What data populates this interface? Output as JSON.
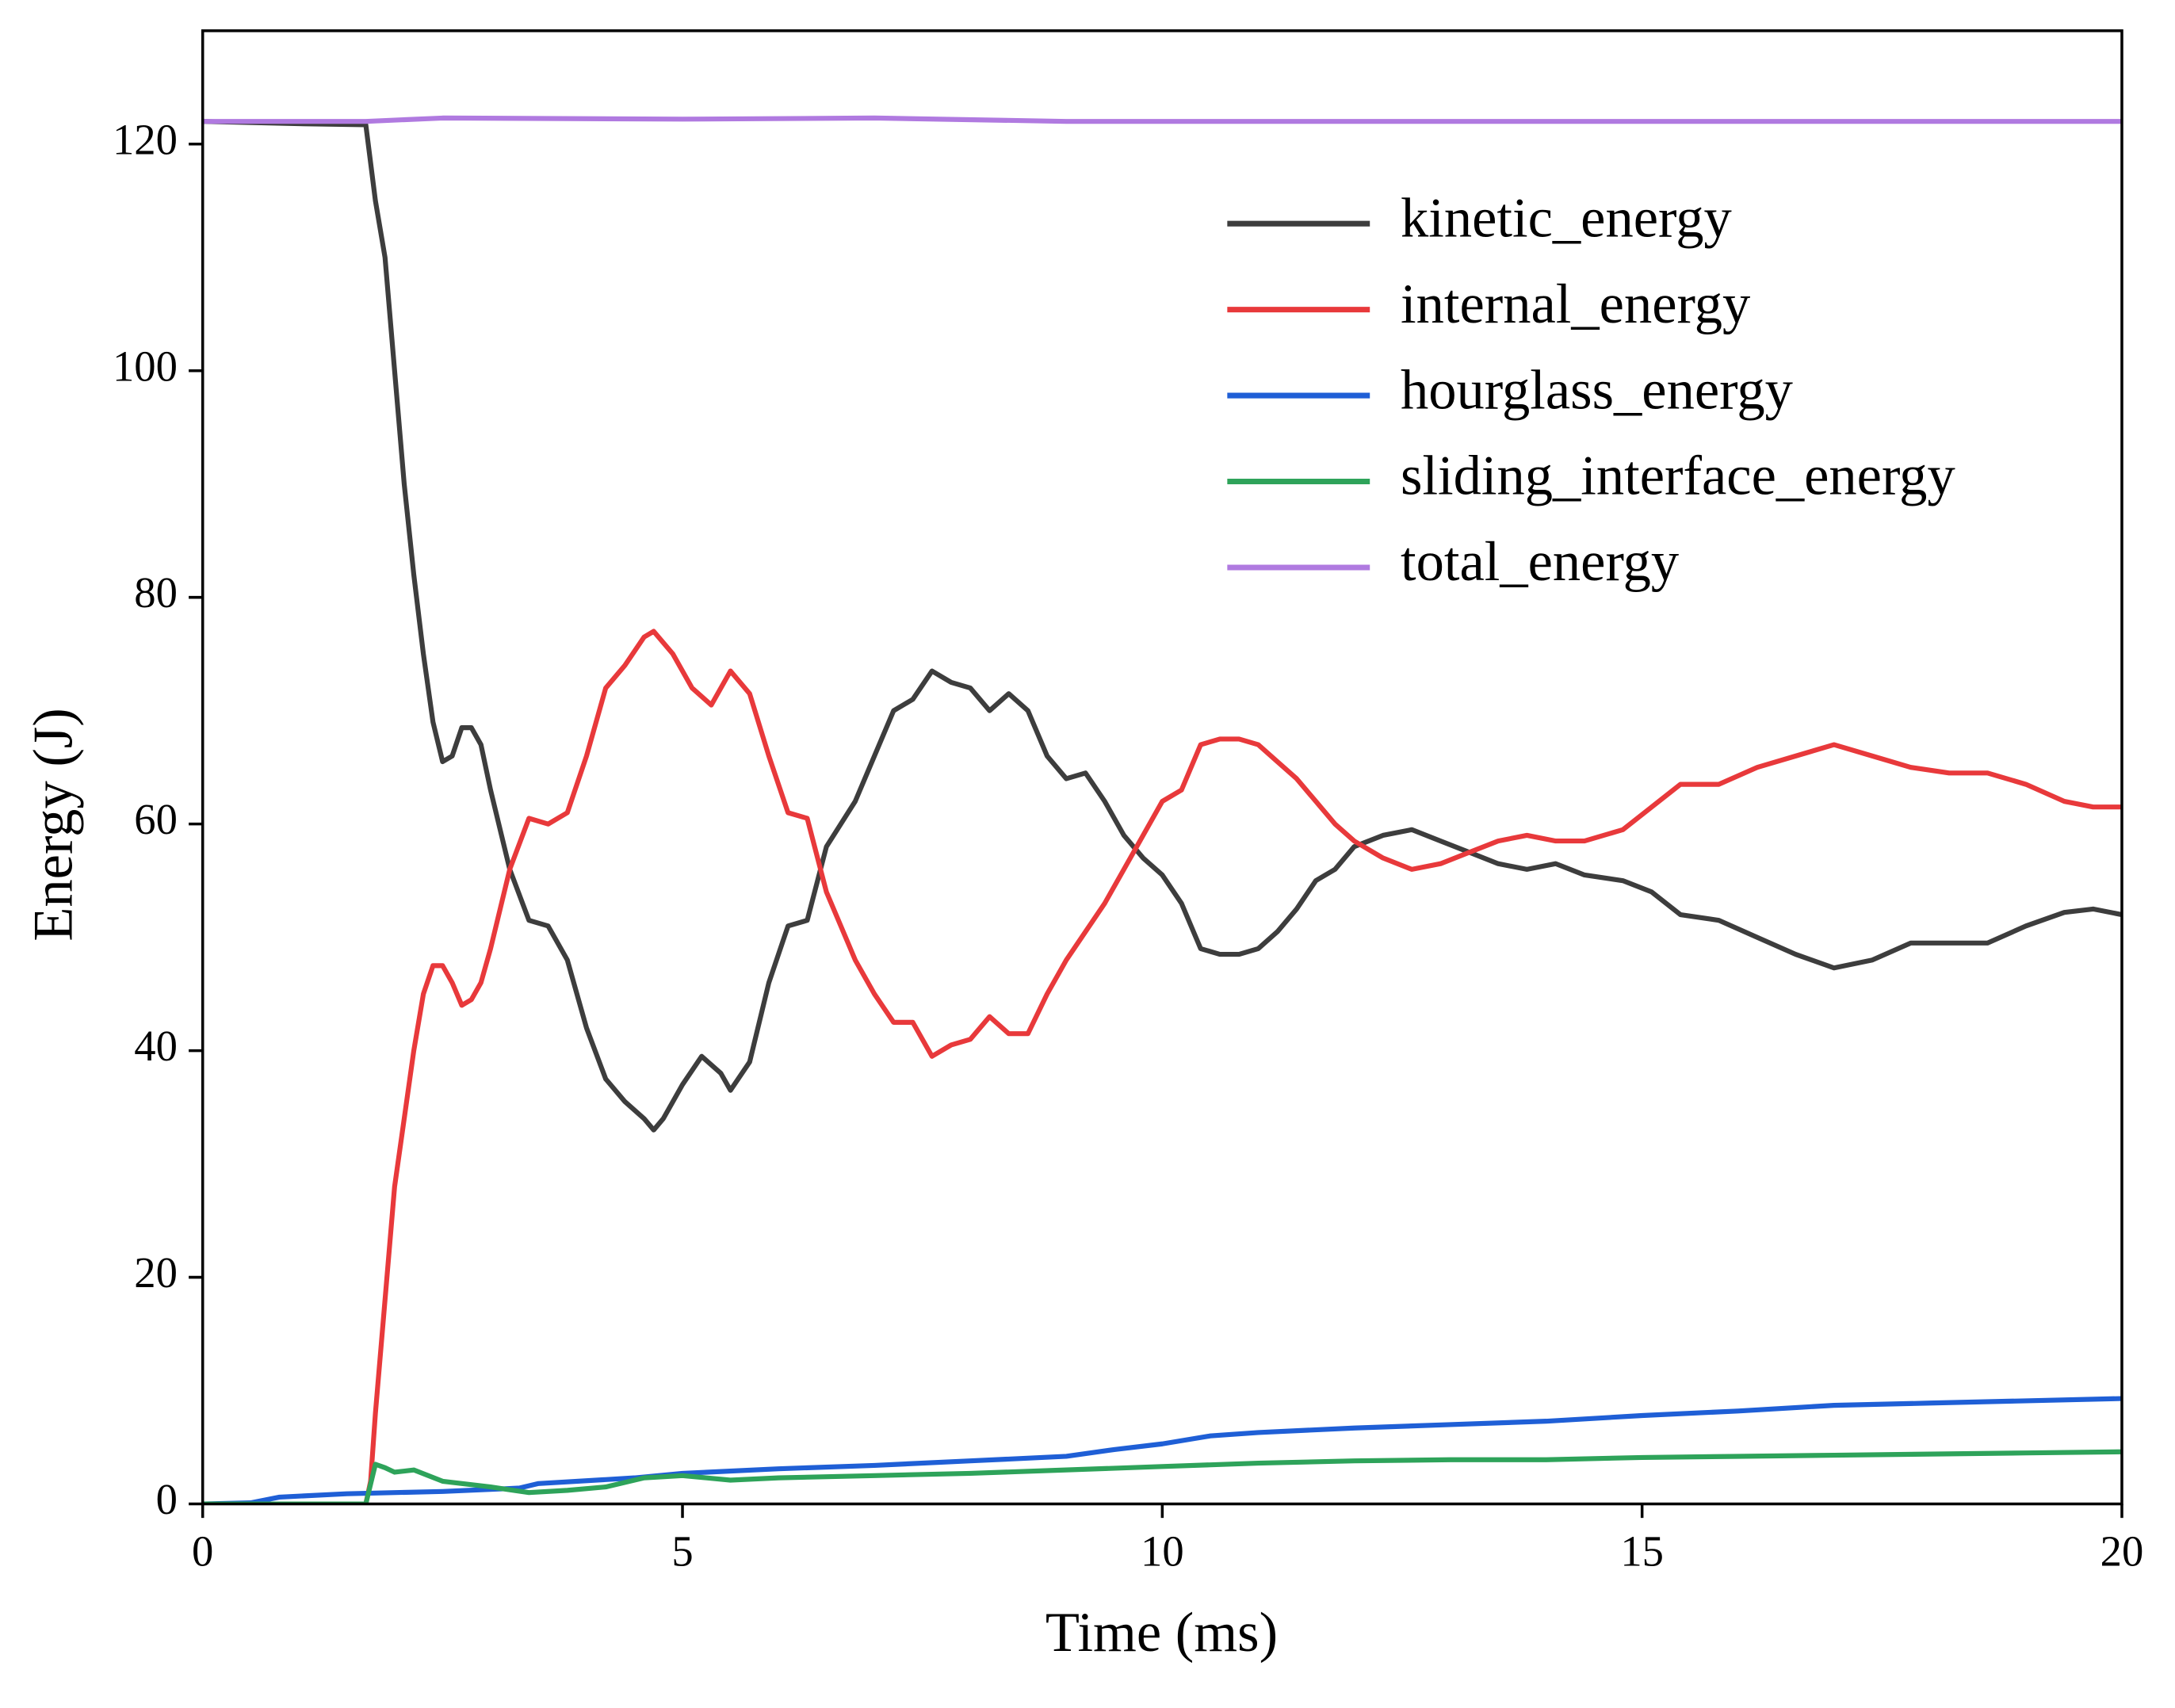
{
  "chart_data": {
    "type": "line",
    "xlabel": "Time (ms)",
    "ylabel": "Energy (J)",
    "xlim": [
      0,
      20
    ],
    "ylim": [
      0,
      130
    ],
    "xticks": [
      0,
      5,
      10,
      15,
      20
    ],
    "yticks": [
      0,
      20,
      40,
      60,
      80,
      100,
      120
    ],
    "legend": "upper right",
    "series": [
      {
        "name": "kinetic_energy",
        "color": "#3d3d3d",
        "x": [
          0,
          1,
          1.7,
          1.8,
          1.9,
          2.0,
          2.1,
          2.2,
          2.3,
          2.4,
          2.5,
          2.6,
          2.7,
          2.8,
          2.9,
          3.0,
          3.2,
          3.4,
          3.6,
          3.8,
          4.0,
          4.2,
          4.4,
          4.6,
          4.7,
          4.8,
          5.0,
          5.2,
          5.4,
          5.5,
          5.7,
          5.9,
          6.1,
          6.3,
          6.5,
          6.8,
          7.0,
          7.2,
          7.4,
          7.6,
          7.8,
          8.0,
          8.2,
          8.4,
          8.6,
          8.8,
          9.0,
          9.2,
          9.4,
          9.6,
          9.8,
          10.0,
          10.2,
          10.4,
          10.6,
          10.8,
          11.0,
          11.2,
          11.4,
          11.6,
          11.8,
          12.0,
          12.3,
          12.6,
          12.9,
          13.2,
          13.5,
          13.8,
          14.1,
          14.4,
          14.8,
          15.1,
          15.4,
          15.8,
          16.2,
          16.6,
          17.0,
          17.4,
          17.8,
          18.2,
          18.6,
          19.0,
          19.4,
          19.7,
          20
        ],
        "values": [
          122,
          121.8,
          121.7,
          115,
          110,
          100,
          90,
          82,
          75,
          69,
          65.5,
          66,
          68.5,
          68.5,
          67,
          63,
          56,
          51.5,
          51,
          48,
          42,
          37.5,
          35.5,
          34,
          33,
          34,
          37,
          39.5,
          38,
          36.5,
          39,
          46,
          51,
          51.5,
          58,
          62,
          66,
          70,
          71,
          73.5,
          72.5,
          72,
          70,
          71.5,
          70,
          66,
          64,
          64.5,
          62,
          59,
          57,
          55.5,
          53,
          49,
          48.5,
          48.5,
          49,
          50.5,
          52.5,
          55,
          56,
          58,
          59,
          59.5,
          58.5,
          57.5,
          56.5,
          56,
          56.5,
          55.5,
          55,
          54,
          52,
          51.5,
          50,
          48.5,
          47.3,
          48,
          49.5,
          49.5,
          49.5,
          51,
          52.2,
          52.5,
          52
        ]
      },
      {
        "name": "internal_energy",
        "color": "#e8393b",
        "x": [
          0,
          1,
          1.7,
          1.75,
          1.8,
          1.9,
          2.0,
          2.1,
          2.2,
          2.3,
          2.4,
          2.5,
          2.6,
          2.7,
          2.8,
          2.9,
          3.0,
          3.2,
          3.4,
          3.6,
          3.8,
          4.0,
          4.2,
          4.4,
          4.6,
          4.7,
          4.9,
          5.1,
          5.3,
          5.5,
          5.7,
          5.9,
          6.1,
          6.3,
          6.5,
          6.8,
          7.0,
          7.2,
          7.4,
          7.6,
          7.8,
          8.0,
          8.2,
          8.4,
          8.6,
          8.8,
          9.0,
          9.2,
          9.4,
          9.6,
          9.8,
          10.0,
          10.2,
          10.4,
          10.6,
          10.8,
          11.0,
          11.2,
          11.4,
          11.6,
          11.8,
          12.0,
          12.3,
          12.6,
          12.9,
          13.2,
          13.5,
          13.8,
          14.1,
          14.4,
          14.8,
          15.1,
          15.4,
          15.8,
          16.2,
          16.6,
          17.0,
          17.4,
          17.8,
          18.2,
          18.6,
          19.0,
          19.4,
          19.7,
          20
        ],
        "values": [
          0,
          0,
          0,
          2,
          8,
          18,
          28,
          34,
          40,
          45,
          47.5,
          47.5,
          46,
          44,
          44.5,
          46,
          49,
          56,
          60.5,
          60,
          61,
          66,
          72,
          74,
          76.5,
          77,
          75,
          72,
          70.5,
          73.5,
          71.5,
          66,
          61,
          60.5,
          54,
          48,
          45,
          42.5,
          42.5,
          39.5,
          40.5,
          41,
          43,
          41.5,
          41.5,
          45,
          48,
          50.5,
          53,
          56,
          59,
          62,
          63,
          67,
          67.5,
          67.5,
          67,
          65.5,
          64,
          62,
          60,
          58.5,
          57,
          56,
          56.5,
          57.5,
          58.5,
          59,
          58.5,
          58.5,
          59.5,
          61.5,
          63.5,
          63.5,
          65,
          66,
          67,
          66,
          65,
          64.5,
          64.5,
          63.5,
          62,
          61.5,
          61.5
        ]
      },
      {
        "name": "hourglass_energy",
        "color": "#1f5fd6",
        "x": [
          0,
          0.5,
          0.8,
          1.5,
          2.5,
          3.3,
          3.5,
          4.5,
          5,
          6,
          7,
          8,
          9,
          9.5,
          10,
          10.5,
          11,
          12,
          13,
          14,
          15,
          16,
          17,
          18,
          19,
          20
        ],
        "values": [
          0,
          0.1,
          0.6,
          0.9,
          1.1,
          1.4,
          1.8,
          2.3,
          2.7,
          3.1,
          3.4,
          3.8,
          4.2,
          4.8,
          5.3,
          6.0,
          6.3,
          6.7,
          7.0,
          7.3,
          7.8,
          8.2,
          8.7,
          8.9,
          9.1,
          9.3
        ]
      },
      {
        "name": "sliding_interface_energy",
        "color": "#2ea35a",
        "x": [
          0,
          1.7,
          1.8,
          1.9,
          2.0,
          2.2,
          2.5,
          3.0,
          3.4,
          3.8,
          4.2,
          4.6,
          5.0,
          5.5,
          6,
          7,
          8,
          9,
          10,
          11,
          12,
          13,
          14,
          15,
          16,
          17,
          18,
          19,
          20
        ],
        "values": [
          0,
          0,
          3.5,
          3.2,
          2.8,
          3.0,
          2.0,
          1.5,
          1.0,
          1.2,
          1.5,
          2.3,
          2.5,
          2.1,
          2.3,
          2.5,
          2.7,
          3.0,
          3.3,
          3.6,
          3.8,
          3.9,
          3.9,
          4.1,
          4.2,
          4.3,
          4.4,
          4.5,
          4.6
        ]
      },
      {
        "name": "total_energy",
        "color": "#b07ae0",
        "x": [
          0,
          1.7,
          2.5,
          5,
          7,
          9,
          12,
          15,
          20
        ],
        "values": [
          122,
          122,
          122.3,
          122.2,
          122.3,
          122.0,
          122.0,
          122.0,
          122.0
        ]
      }
    ]
  }
}
